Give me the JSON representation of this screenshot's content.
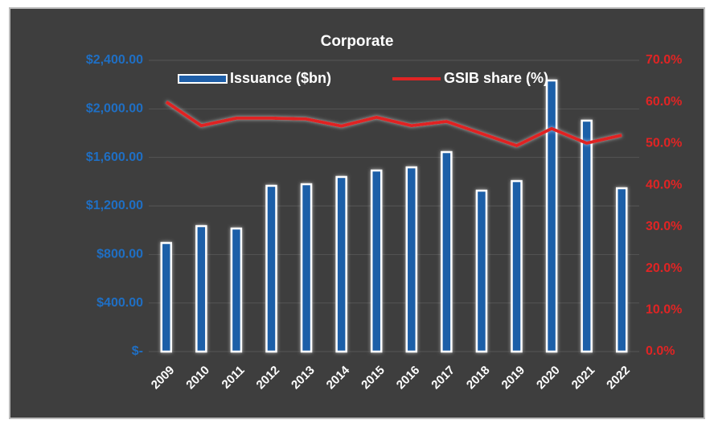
{
  "chart_data": {
    "type": "bar",
    "title": "Corporate",
    "categories": [
      "2009",
      "2010",
      "2011",
      "2012",
      "2013",
      "2014",
      "2015",
      "2016",
      "2017",
      "2018",
      "2019",
      "2020",
      "2021",
      "2022"
    ],
    "series": [
      {
        "name": "Issuance ($bn)",
        "type": "bar",
        "color": "#1f5fa8",
        "values": [
          895,
          1034,
          1014,
          1366,
          1379,
          1439,
          1492,
          1518,
          1644,
          1326,
          1405,
          2234,
          1903,
          1346
        ]
      },
      {
        "name": "GSIB share (%)",
        "type": "line",
        "axis": "y2",
        "color": "#e02424",
        "values": [
          60.0,
          54.3,
          56.1,
          56.1,
          55.9,
          54.2,
          56.3,
          54.3,
          55.3,
          52.4,
          49.5,
          53.6,
          50.1,
          52.0
        ]
      }
    ],
    "ylim": [
      0,
      2400
    ],
    "yticks": [
      {
        "value": 0,
        "label": "$-"
      },
      {
        "value": 400,
        "label": "$400.00"
      },
      {
        "value": 800,
        "label": "$800.00"
      },
      {
        "value": 1200,
        "label": "$1,200.00"
      },
      {
        "value": 1600,
        "label": "$1,600.00"
      },
      {
        "value": 2000,
        "label": "$2,000.00"
      },
      {
        "value": 2400,
        "label": "$2,400.00"
      }
    ],
    "y2lim": [
      0,
      70
    ],
    "y2ticks": [
      {
        "value": 0,
        "label": "0.0%"
      },
      {
        "value": 10,
        "label": "10.0%"
      },
      {
        "value": 20,
        "label": "20.0%"
      },
      {
        "value": 30,
        "label": "30.0%"
      },
      {
        "value": 40,
        "label": "40.0%"
      },
      {
        "value": 50,
        "label": "50.0%"
      },
      {
        "value": 60,
        "label": "60.0%"
      },
      {
        "value": 70,
        "label": "70.0%"
      }
    ],
    "grid": true,
    "legend": "top"
  }
}
